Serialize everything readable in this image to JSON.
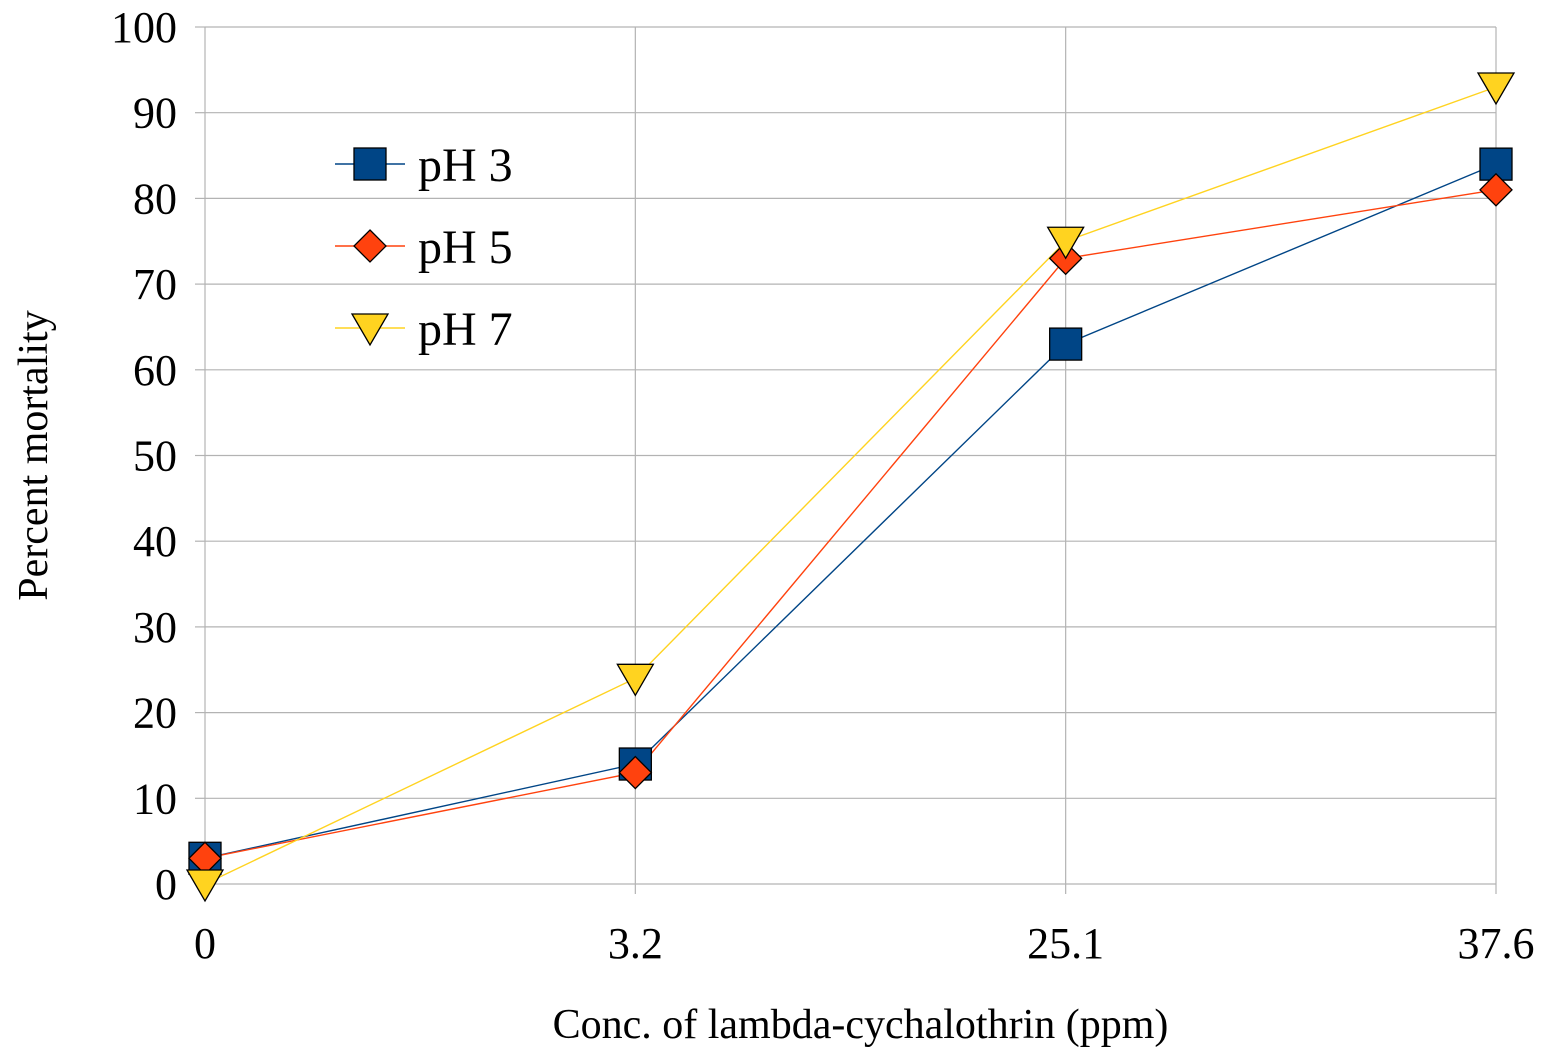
{
  "chart_data": {
    "type": "line",
    "title": "",
    "xlabel": "Conc. of lambda-cychalothrin (ppm)",
    "ylabel": "Percent mortality",
    "categories": [
      "0",
      "3.2",
      "25.1",
      "37.6"
    ],
    "ylim": [
      0,
      100
    ],
    "yticks": [
      0,
      10,
      20,
      30,
      40,
      50,
      60,
      70,
      80,
      90,
      100
    ],
    "grid": true,
    "legend_position": "top-left",
    "series": [
      {
        "name": "pH 3",
        "marker": "square",
        "color": "#004586",
        "values": [
          3,
          14,
          63,
          84
        ]
      },
      {
        "name": "pH 5",
        "marker": "diamond",
        "color": "#ff420e",
        "values": [
          3,
          13,
          73,
          81
        ]
      },
      {
        "name": "pH 7",
        "marker": "triangle-down",
        "color": "#ffd320",
        "values": [
          0,
          24,
          75,
          93
        ]
      }
    ]
  }
}
